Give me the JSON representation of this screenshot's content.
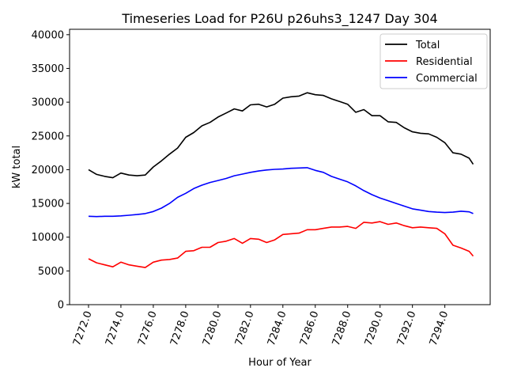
{
  "chart_data": {
    "type": "line",
    "title": "Timeseries Load for P26U p26uhs3_1247  Day 304",
    "xlabel": "Hour of Year",
    "ylabel": "kW total",
    "xlim": [
      7270.83,
      7296.8
    ],
    "ylim": [
      0,
      40800
    ],
    "xticks": [
      7272,
      7274,
      7276,
      7278,
      7280,
      7282,
      7284,
      7286,
      7288,
      7290,
      7292,
      7294
    ],
    "xtick_labels": [
      "7272.0",
      "7274.0",
      "7276.0",
      "7278.0",
      "7280.0",
      "7282.0",
      "7284.0",
      "7286.0",
      "7288.0",
      "7290.0",
      "7292.0",
      "7294.0"
    ],
    "yticks": [
      0,
      5000,
      10000,
      15000,
      20000,
      25000,
      30000,
      35000,
      40000
    ],
    "ytick_labels": [
      "0",
      "5000",
      "10000",
      "15000",
      "20000",
      "25000",
      "30000",
      "35000",
      "40000"
    ],
    "grid": false,
    "legend_position": "top-right",
    "x": [
      7272,
      7272.5,
      7273,
      7273.5,
      7274,
      7274.5,
      7275,
      7275.5,
      7276,
      7276.5,
      7277,
      7277.5,
      7278,
      7278.5,
      7279,
      7279.5,
      7280,
      7280.5,
      7281,
      7281.5,
      7282,
      7282.5,
      7283,
      7283.5,
      7284,
      7284.5,
      7285,
      7285.5,
      7286,
      7286.5,
      7287,
      7287.5,
      7288,
      7288.5,
      7289,
      7289.5,
      7290,
      7290.5,
      7291,
      7291.5,
      7292,
      7292.5,
      7293,
      7293.5,
      7294,
      7294.5,
      7295,
      7295.5,
      7295.75
    ],
    "series": [
      {
        "name": "Total",
        "color": "#000000",
        "values": [
          20000,
          19300,
          19000,
          18800,
          19500,
          19200,
          19100,
          19200,
          20400,
          21300,
          22300,
          23200,
          24800,
          25500,
          26500,
          27000,
          27800,
          28400,
          29000,
          28700,
          29600,
          29700,
          29300,
          29700,
          30600,
          30800,
          30900,
          31400,
          31100,
          31000,
          30500,
          30100,
          29700,
          28500,
          28900,
          28000,
          28000,
          27100,
          27000,
          26200,
          25600,
          25400,
          25300,
          24800,
          24000,
          22500,
          22300,
          21700,
          20800
        ]
      },
      {
        "name": "Residential",
        "color": "#ff0000",
        "values": [
          6800,
          6200,
          5900,
          5600,
          6300,
          5900,
          5700,
          5500,
          6300,
          6600,
          6700,
          6900,
          7900,
          8000,
          8500,
          8500,
          9200,
          9400,
          9800,
          9100,
          9800,
          9700,
          9200,
          9600,
          10400,
          10500,
          10600,
          11100,
          11100,
          11300,
          11500,
          11500,
          11600,
          11300,
          12200,
          12100,
          12300,
          11900,
          12100,
          11700,
          11400,
          11500,
          11400,
          11300,
          10500,
          8800,
          8400,
          7900,
          7200
        ]
      },
      {
        "name": "Commercial",
        "color": "#0000ff",
        "values": [
          13100,
          13050,
          13100,
          13100,
          13150,
          13250,
          13350,
          13500,
          13800,
          14300,
          15000,
          15900,
          16500,
          17200,
          17700,
          18100,
          18400,
          18700,
          19100,
          19350,
          19600,
          19800,
          19950,
          20050,
          20100,
          20200,
          20250,
          20300,
          19900,
          19600,
          19000,
          18600,
          18200,
          17600,
          16900,
          16300,
          15800,
          15400,
          15000,
          14600,
          14200,
          14000,
          13800,
          13700,
          13650,
          13700,
          13850,
          13750,
          13500
        ]
      }
    ]
  }
}
